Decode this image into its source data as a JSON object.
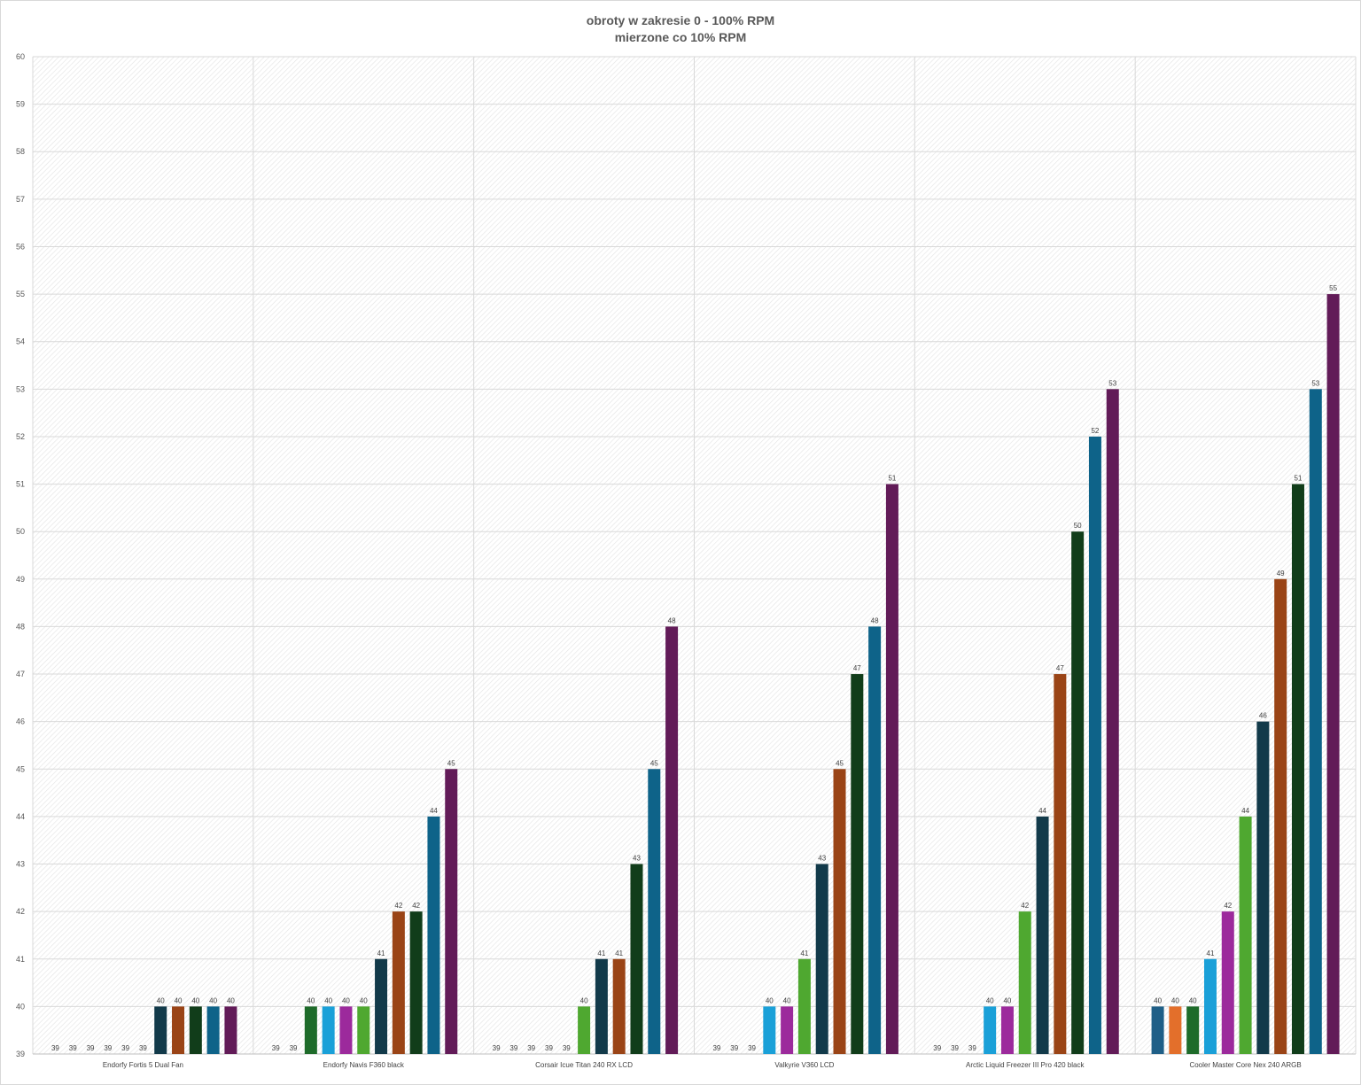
{
  "chart_data": {
    "type": "bar",
    "title": "obroty w zakresie 0 - 100% RPM",
    "subtitle": "mierzone co 10% RPM",
    "ylim": [
      39,
      60
    ],
    "ytick_step": 1,
    "grid": true,
    "legend": "none",
    "categories": [
      "Endorfy Fortis 5 Dual Fan",
      "Endorfy Navis F360 black",
      "Corsair Icue Titan 240 RX LCD",
      "Valkyrie V360 LCD",
      "Arctic Liquid Freezer III Pro 420 black",
      "Cooler Master Core Nex 240 ARGB"
    ],
    "series": [
      {
        "color": "#1f5f87",
        "values": [
          39,
          39,
          39,
          39,
          39,
          40
        ]
      },
      {
        "color": "#e36f2b",
        "values": [
          39,
          39,
          39,
          39,
          39,
          40
        ]
      },
      {
        "color": "#1e6b2a",
        "values": [
          39,
          40,
          39,
          39,
          39,
          40
        ]
      },
      {
        "color": "#1aa0d8",
        "values": [
          39,
          40,
          39,
          40,
          40,
          41
        ]
      },
      {
        "color": "#9c2a9c",
        "values": [
          39,
          40,
          39,
          40,
          40,
          42
        ]
      },
      {
        "color": "#4fa830",
        "values": [
          39,
          40,
          40,
          41,
          42,
          44
        ]
      },
      {
        "color": "#123a4a",
        "values": [
          40,
          41,
          41,
          43,
          44,
          46
        ]
      },
      {
        "color": "#9a4416",
        "values": [
          40,
          42,
          41,
          45,
          47,
          49
        ]
      },
      {
        "color": "#113d1a",
        "values": [
          40,
          42,
          43,
          47,
          50,
          51
        ]
      },
      {
        "color": "#0e6389",
        "values": [
          40,
          44,
          45,
          48,
          52,
          53
        ]
      },
      {
        "color": "#621b58",
        "values": [
          40,
          45,
          48,
          51,
          53,
          55
        ]
      }
    ]
  }
}
